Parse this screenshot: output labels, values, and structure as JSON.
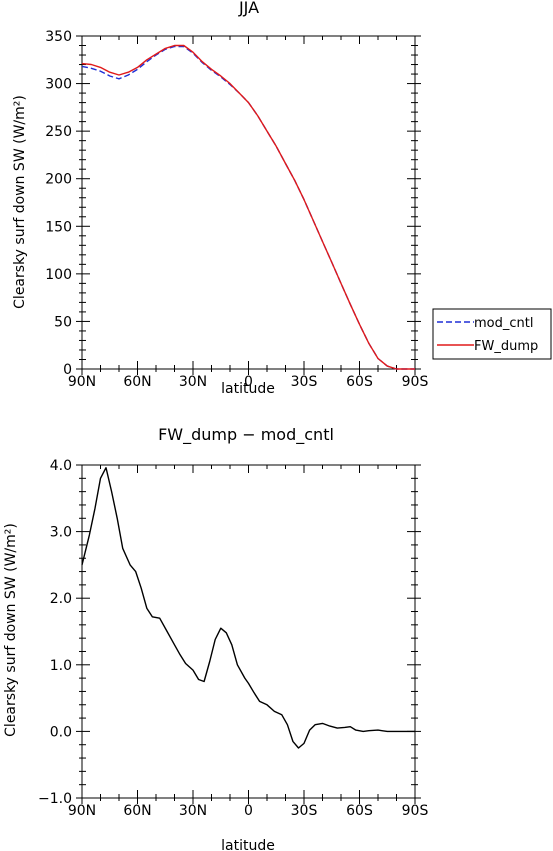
{
  "chart_data": [
    {
      "type": "line",
      "title": "JJA",
      "xlabel": "latitude",
      "ylabel": "Clearsky surf down SW (W/m²)",
      "x_ticks": [
        "90N",
        "60N",
        "30N",
        "0",
        "30S",
        "60S",
        "90S"
      ],
      "y_ticks": [
        "0",
        "50",
        "100",
        "150",
        "200",
        "250",
        "300",
        "350"
      ],
      "xlim": [
        90,
        -90
      ],
      "ylim": [
        0,
        350
      ],
      "legend": "right",
      "x": [
        90,
        85,
        80,
        75,
        70,
        65,
        60,
        55,
        50,
        45,
        40,
        35,
        30,
        25,
        20,
        15,
        10,
        5,
        0,
        -5,
        -10,
        -15,
        -20,
        -25,
        -30,
        -35,
        -40,
        -45,
        -50,
        -55,
        -60,
        -65,
        -70,
        -75,
        -80,
        -85,
        -90
      ],
      "series": [
        {
          "name": "mod_cntl",
          "color": "#1f2fd6",
          "dash": "dashed",
          "values": [
            318,
            316,
            313,
            308,
            305,
            309,
            315,
            323,
            330,
            336,
            339,
            339,
            332,
            322,
            314,
            307,
            299,
            290,
            280,
            266,
            250,
            234,
            216,
            198,
            178,
            156,
            134,
            112,
            90,
            68,
            47,
            27,
            11,
            3,
            0,
            0,
            0
          ]
        },
        {
          "name": "FW_dump",
          "color": "#e01a1a",
          "dash": "solid",
          "values": [
            321,
            320,
            317,
            312,
            309,
            312,
            317,
            325,
            331,
            337,
            340,
            340,
            333,
            323,
            315,
            308,
            300,
            290,
            280,
            266,
            250,
            234,
            216,
            198,
            178,
            156,
            134,
            112,
            90,
            68,
            47,
            27,
            11,
            3,
            0,
            0,
            0
          ]
        }
      ]
    },
    {
      "type": "line",
      "title": "FW_dump − mod_cntl",
      "xlabel": "latitude",
      "ylabel": "Clearsky surf down SW (W/m²)",
      "x_ticks": [
        "90N",
        "60N",
        "30N",
        "0",
        "30S",
        "60S",
        "90S"
      ],
      "y_ticks": [
        "−1.0",
        "0.0",
        "1.0",
        "2.0",
        "3.0",
        "4.0"
      ],
      "xlim": [
        90,
        -90
      ],
      "ylim": [
        -1,
        4
      ],
      "series": [
        {
          "color": "#000000",
          "x": [
            90,
            86,
            83,
            80,
            77,
            74,
            71,
            68,
            64,
            61,
            58,
            55,
            52,
            48,
            44,
            40,
            37,
            34,
            30,
            27,
            24,
            21,
            18,
            15,
            12,
            9,
            6,
            2,
            0,
            -3,
            -6,
            -10,
            -14,
            -18,
            -21,
            -24,
            -27,
            -30,
            -33,
            -36,
            -40,
            -44,
            -48,
            -52,
            -55,
            -58,
            -62,
            -65,
            -70,
            -75,
            -80,
            -85,
            -90
          ],
          "values": [
            2.5,
            2.95,
            3.35,
            3.8,
            3.96,
            3.6,
            3.2,
            2.75,
            2.5,
            2.4,
            2.15,
            1.85,
            1.72,
            1.7,
            1.5,
            1.3,
            1.15,
            1.02,
            0.92,
            0.78,
            0.75,
            1.05,
            1.38,
            1.55,
            1.48,
            1.3,
            1.0,
            0.8,
            0.72,
            0.58,
            0.45,
            0.4,
            0.3,
            0.25,
            0.1,
            -0.15,
            -0.25,
            -0.18,
            0.02,
            0.1,
            0.12,
            0.08,
            0.05,
            0.06,
            0.07,
            0.02,
            0.0,
            0.01,
            0.02,
            0.0,
            0.0,
            0.0,
            0.0
          ]
        }
      ]
    }
  ]
}
